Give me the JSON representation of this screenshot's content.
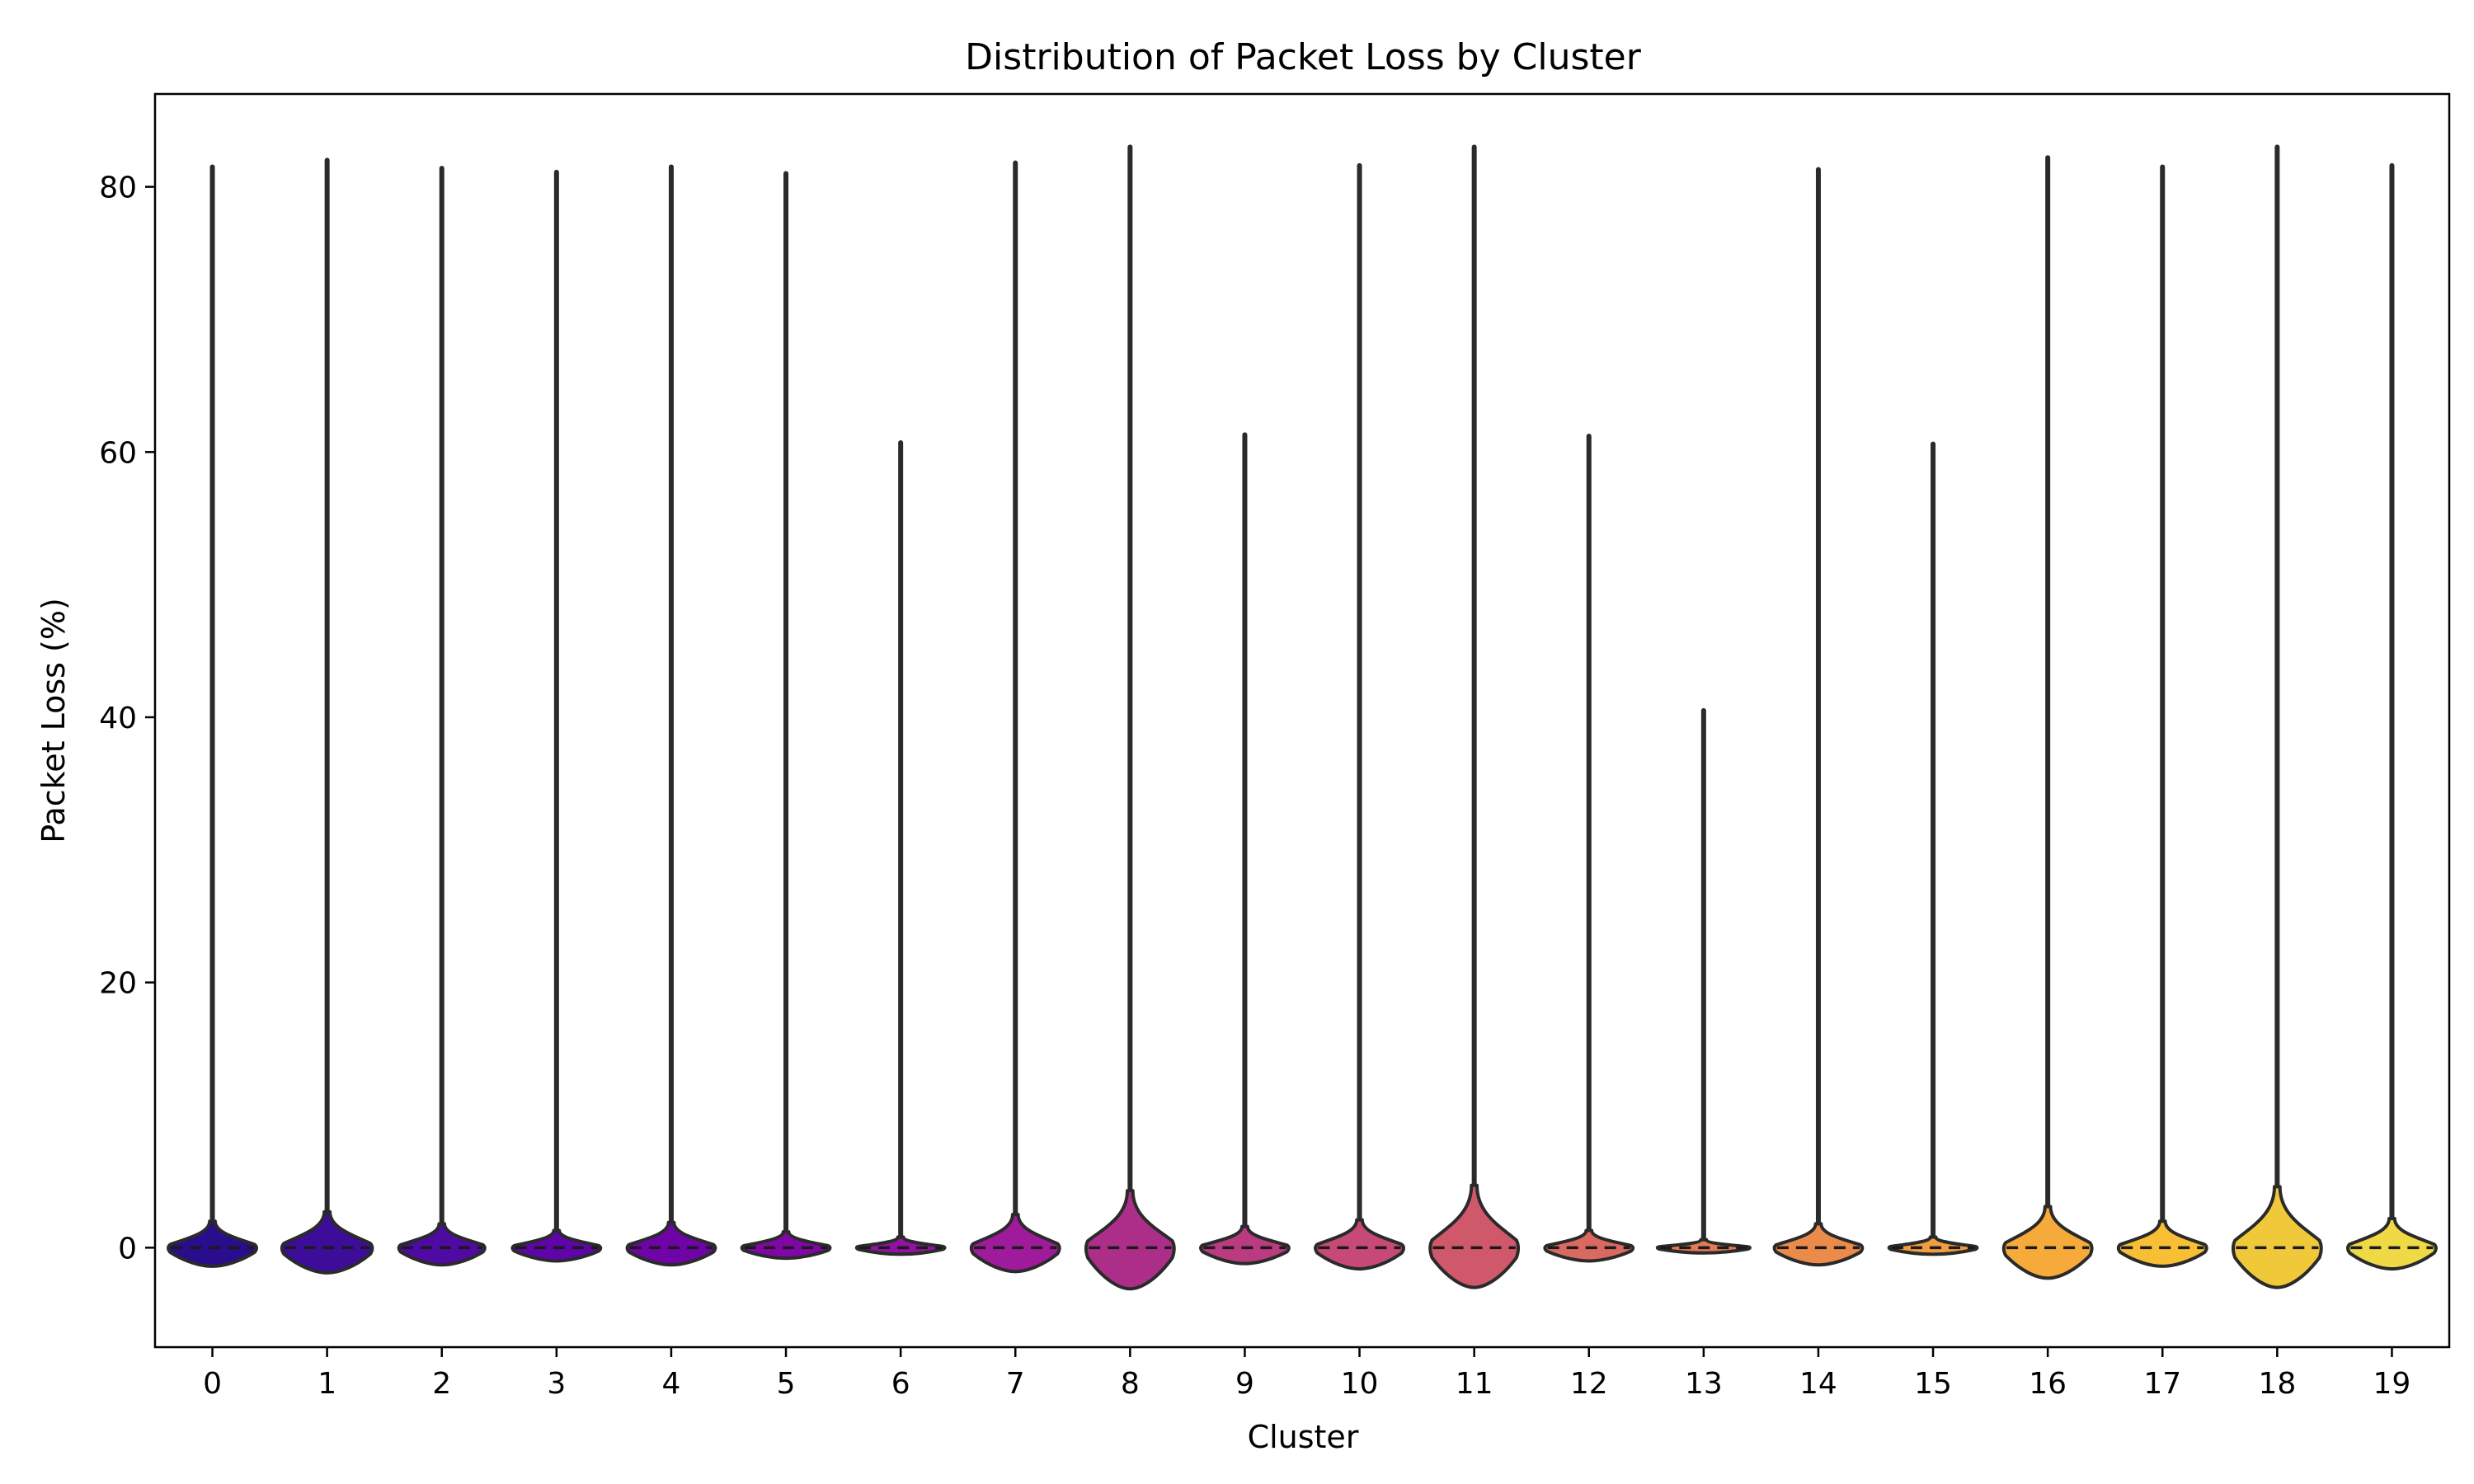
{
  "chart_data": {
    "type": "violin",
    "title": "Distribution of Packet Loss by Cluster",
    "xlabel": "Cluster",
    "ylabel": "Packet Loss (%)",
    "ylim": [
      -7.5,
      87
    ],
    "yticks": [
      0,
      20,
      40,
      60,
      80
    ],
    "grid": false,
    "legend": "none",
    "categories": [
      "0",
      "1",
      "2",
      "3",
      "4",
      "5",
      "6",
      "7",
      "8",
      "9",
      "10",
      "11",
      "12",
      "13",
      "14",
      "15",
      "16",
      "17",
      "18",
      "19"
    ],
    "series": [
      {
        "cluster": "0",
        "max": 81.5,
        "min": -1.4,
        "median": 0,
        "upper_body": 2.0,
        "half_width": 0.4,
        "color": "#2a0d8c"
      },
      {
        "cluster": "1",
        "max": 82.0,
        "min": -1.9,
        "median": 0,
        "upper_body": 2.7,
        "half_width": 0.41,
        "color": "#3d0d9a"
      },
      {
        "cluster": "2",
        "max": 81.4,
        "min": -1.3,
        "median": 0,
        "upper_body": 1.8,
        "half_width": 0.39,
        "color": "#4e0aa3"
      },
      {
        "cluster": "3",
        "max": 81.1,
        "min": -1.0,
        "median": 0,
        "upper_body": 1.3,
        "half_width": 0.4,
        "color": "#5f04a8"
      },
      {
        "cluster": "4",
        "max": 81.5,
        "min": -1.3,
        "median": 0,
        "upper_body": 1.9,
        "half_width": 0.4,
        "color": "#7003a8"
      },
      {
        "cluster": "5",
        "max": 81.0,
        "min": -0.8,
        "median": 0,
        "upper_body": 1.2,
        "half_width": 0.4,
        "color": "#8106a6"
      },
      {
        "cluster": "6",
        "max": 60.7,
        "min": -0.5,
        "median": 0,
        "upper_body": 0.8,
        "half_width": 0.4,
        "color": "#9012a0"
      },
      {
        "cluster": "7",
        "max": 81.8,
        "min": -1.8,
        "median": 0,
        "upper_body": 2.5,
        "half_width": 0.4,
        "color": "#a01a9c"
      },
      {
        "cluster": "8",
        "max": 83.0,
        "min": -3.1,
        "median": 0,
        "upper_body": 4.3,
        "half_width": 0.4,
        "color": "#ad2e89"
      },
      {
        "cluster": "9",
        "max": 61.3,
        "min": -1.2,
        "median": 0,
        "upper_body": 1.6,
        "half_width": 0.4,
        "color": "#ba3b80"
      },
      {
        "cluster": "10",
        "max": 81.6,
        "min": -1.6,
        "median": 0,
        "upper_body": 2.1,
        "half_width": 0.4,
        "color": "#c64a75"
      },
      {
        "cluster": "11",
        "max": 83.0,
        "min": -3.0,
        "median": 0,
        "upper_body": 4.7,
        "half_width": 0.4,
        "color": "#d0586b"
      },
      {
        "cluster": "12",
        "max": 61.2,
        "min": -1.0,
        "median": 0,
        "upper_body": 1.3,
        "half_width": 0.4,
        "color": "#da6a61"
      },
      {
        "cluster": "13",
        "max": 40.5,
        "min": -0.4,
        "median": 0,
        "upper_body": 0.6,
        "half_width": 0.42,
        "color": "#e27b55"
      },
      {
        "cluster": "14",
        "max": 81.3,
        "min": -1.3,
        "median": 0,
        "upper_body": 1.8,
        "half_width": 0.4,
        "color": "#ea8b4b"
      },
      {
        "cluster": "15",
        "max": 60.6,
        "min": -0.5,
        "median": 0,
        "upper_body": 0.8,
        "half_width": 0.4,
        "color": "#f19c40"
      },
      {
        "cluster": "16",
        "max": 82.2,
        "min": -2.3,
        "median": 0,
        "upper_body": 3.1,
        "half_width": 0.4,
        "color": "#f5aa3a"
      },
      {
        "cluster": "17",
        "max": 81.5,
        "min": -1.4,
        "median": 0,
        "upper_body": 2.0,
        "half_width": 0.4,
        "color": "#f8be34"
      },
      {
        "cluster": "18",
        "max": 83.0,
        "min": -3.0,
        "median": 0,
        "upper_body": 4.6,
        "half_width": 0.4,
        "color": "#f0c93a"
      },
      {
        "cluster": "19",
        "max": 81.6,
        "min": -1.6,
        "median": 0,
        "upper_body": 2.2,
        "half_width": 0.4,
        "color": "#efd944"
      }
    ]
  }
}
